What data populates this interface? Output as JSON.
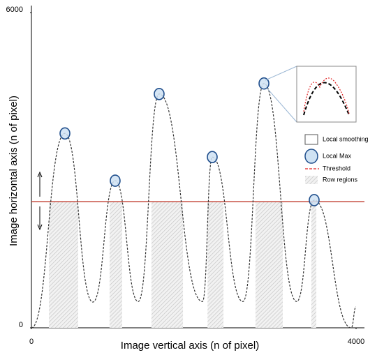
{
  "chart_data": {
    "type": "line",
    "xlabel": "Image vertical axis (n of pixel)",
    "ylabel": "Image horizontal axis (n of pixel)",
    "xlim": [
      0,
      4000
    ],
    "ylim": [
      0,
      6000
    ],
    "xticks": [
      0,
      4000
    ],
    "yticks": [
      0,
      6000
    ],
    "series": [
      {
        "name": "Local smoothing",
        "color": "#333333",
        "x": [
          0,
          413,
          757,
          1032,
          1316,
          1574,
          2108,
          2228,
          2606,
          2865,
          3269,
          3484,
          3940,
          4000
        ],
        "values": [
          0,
          3700,
          490,
          2800,
          500,
          4450,
          500,
          3250,
          500,
          4650,
          500,
          2430,
          0,
          400
        ]
      }
    ],
    "local_max_label": "Local Max",
    "local_max_color": "#cfe2f3",
    "threshold": {
      "name": "Threshold",
      "value": 2400,
      "color": "#c0392b"
    },
    "row_regions": {
      "name": "Row regions",
      "spans": [
        [
          215,
          576
        ],
        [
          963,
          1118
        ],
        [
          1479,
          1867
        ],
        [
          2170,
          2366
        ],
        [
          2761,
          3097
        ],
        [
          3449,
          3510
        ]
      ]
    }
  }
}
